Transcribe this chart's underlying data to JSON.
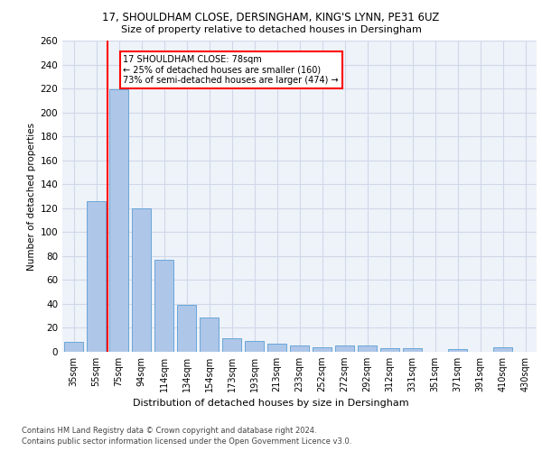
{
  "title_line1": "17, SHOULDHAM CLOSE, DERSINGHAM, KING'S LYNN, PE31 6UZ",
  "title_line2": "Size of property relative to detached houses in Dersingham",
  "xlabel": "Distribution of detached houses by size in Dersingham",
  "ylabel": "Number of detached properties",
  "categories": [
    "35sqm",
    "55sqm",
    "75sqm",
    "94sqm",
    "114sqm",
    "134sqm",
    "154sqm",
    "173sqm",
    "193sqm",
    "213sqm",
    "233sqm",
    "252sqm",
    "272sqm",
    "292sqm",
    "312sqm",
    "331sqm",
    "351sqm",
    "371sqm",
    "391sqm",
    "410sqm",
    "430sqm"
  ],
  "values": [
    8,
    126,
    219,
    120,
    77,
    39,
    29,
    11,
    9,
    7,
    5,
    4,
    5,
    5,
    3,
    3,
    0,
    2,
    0,
    4,
    0
  ],
  "bar_color": "#aec6e8",
  "bar_edge_color": "#5a9fd4",
  "grid_color": "#d0d8e8",
  "background_color": "#eef2f9",
  "property_line_x": 2,
  "annotation_text": "17 SHOULDHAM CLOSE: 78sqm\n← 25% of detached houses are smaller (160)\n73% of semi-detached houses are larger (474) →",
  "annotation_box_color": "white",
  "annotation_box_edge": "red",
  "red_line_color": "red",
  "footer_line1": "Contains HM Land Registry data © Crown copyright and database right 2024.",
  "footer_line2": "Contains public sector information licensed under the Open Government Licence v3.0.",
  "ylim": [
    0,
    260
  ],
  "yticks": [
    0,
    20,
    40,
    60,
    80,
    100,
    120,
    140,
    160,
    180,
    200,
    220,
    240,
    260
  ]
}
